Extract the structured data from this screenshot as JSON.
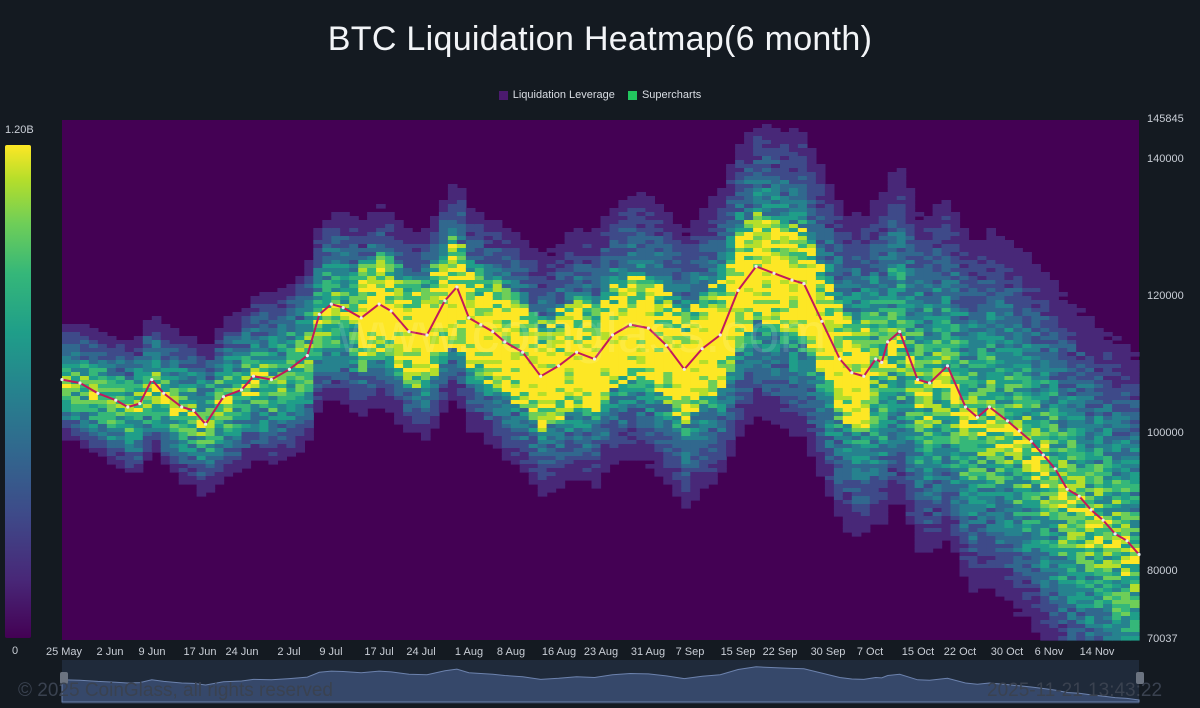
{
  "title": "BTC Liquidation Heatmap(6 month)",
  "legend": [
    {
      "label": "Liquidation Leverage",
      "color": "#4b1a6e"
    },
    {
      "label": "Supercharts",
      "color": "#22c55e"
    }
  ],
  "colorbar": {
    "max_label": "1.20B",
    "min_label": "0"
  },
  "watermark": "www.coinglass.com",
  "footer": {
    "copyright": "© 2025 CoinGlass, all rights reserved",
    "timestamp": "2025-11-21 13:43:22"
  },
  "chart_data": {
    "type": "heatmap",
    "title": "BTC Liquidation Heatmap(6 month)",
    "y_range": [
      70037,
      145845
    ],
    "y_ticks": [
      "145845",
      "140000",
      "120000",
      "100000",
      "80000",
      "70037"
    ],
    "y_tick_values": [
      145845,
      140000,
      120000,
      100000,
      80000,
      70037
    ],
    "x_range": [
      "2025-05-25",
      "2025-11-21"
    ],
    "x_ticks": [
      "25 May",
      "2 Jun",
      "9 Jun",
      "17 Jun",
      "24 Jun",
      "2 Jul",
      "9 Jul",
      "17 Jul",
      "24 Jul",
      "1 Aug",
      "8 Aug",
      "16 Aug",
      "23 Aug",
      "31 Aug",
      "7 Sep",
      "15 Sep",
      "22 Sep",
      "30 Sep",
      "7 Oct",
      "15 Oct",
      "22 Oct",
      "30 Oct",
      "6 Nov",
      "14 Nov"
    ],
    "x_tick_days": [
      0,
      8,
      15,
      23,
      30,
      38,
      45,
      53,
      60,
      68,
      75,
      83,
      90,
      98,
      105,
      113,
      120,
      128,
      135,
      143,
      150,
      158,
      165,
      173
    ],
    "total_days": 180,
    "colorscale": [
      "#440154",
      "#482878",
      "#3e4a89",
      "#31688e",
      "#26828e",
      "#1f9e89",
      "#35b779",
      "#6ece58",
      "#b5de2b",
      "#fde725"
    ],
    "value_range": [
      0,
      1200000000
    ],
    "price_series_days": [
      0,
      3,
      6,
      9,
      11,
      13,
      15,
      17,
      20,
      22,
      24,
      27,
      30,
      32,
      35,
      38,
      41,
      43,
      45,
      47,
      50,
      53,
      55,
      58,
      61,
      64,
      66,
      68,
      70,
      72,
      74,
      77,
      80,
      83,
      86,
      89,
      92,
      95,
      98,
      101,
      104,
      107,
      110,
      113,
      116,
      119,
      122,
      124,
      127,
      130,
      132,
      134,
      136,
      137,
      138,
      140,
      143,
      145,
      148,
      151,
      153,
      155,
      158,
      160,
      162,
      164,
      166,
      168,
      170,
      172,
      174,
      176,
      178,
      180
    ],
    "price_series": [
      108000,
      107500,
      106000,
      105000,
      104000,
      104500,
      108000,
      106000,
      104000,
      103500,
      101500,
      105500,
      106500,
      108500,
      108000,
      109500,
      111500,
      117500,
      119000,
      118500,
      117000,
      119000,
      118000,
      115000,
      114500,
      119500,
      121500,
      117000,
      116000,
      115000,
      113500,
      112000,
      108500,
      110000,
      112000,
      111000,
      114500,
      116000,
      115500,
      113000,
      109500,
      112500,
      114500,
      121000,
      124500,
      123500,
      122500,
      122000,
      116500,
      111000,
      109000,
      108500,
      111000,
      110500,
      113500,
      115000,
      108000,
      107500,
      110000,
      104000,
      102500,
      104000,
      102000,
      100500,
      99000,
      97000,
      95000,
      92000,
      91000,
      89000,
      87500,
      85500,
      84500,
      82500
    ]
  }
}
